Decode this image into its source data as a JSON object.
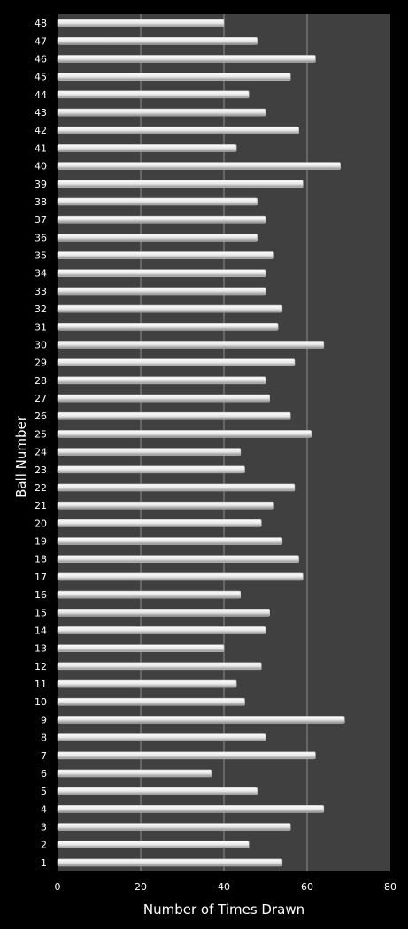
{
  "chart_data": {
    "type": "bar",
    "orientation": "horizontal",
    "title": "",
    "xlabel": "Number of Times Drawn",
    "ylabel": "Ball Number",
    "xlim": [
      0,
      80
    ],
    "xticks": [
      0,
      20,
      40,
      60,
      80
    ],
    "grid": "vertical",
    "legend": "none",
    "colors": {
      "background": "#000000",
      "plot_area": "#404040",
      "bar": "#e8e8e8",
      "grid": "#8c8c8c",
      "text": "#ffffff"
    },
    "categories": [
      "1",
      "2",
      "3",
      "4",
      "5",
      "6",
      "7",
      "8",
      "9",
      "10",
      "11",
      "12",
      "13",
      "14",
      "15",
      "16",
      "17",
      "18",
      "19",
      "20",
      "21",
      "22",
      "23",
      "24",
      "25",
      "26",
      "27",
      "28",
      "29",
      "30",
      "31",
      "32",
      "33",
      "34",
      "35",
      "36",
      "37",
      "38",
      "39",
      "40",
      "41",
      "42",
      "43",
      "44",
      "45",
      "46",
      "47",
      "48"
    ],
    "values": [
      54,
      46,
      56,
      64,
      48,
      37,
      62,
      50,
      69,
      45,
      43,
      49,
      40,
      50,
      51,
      44,
      59,
      58,
      54,
      49,
      52,
      57,
      45,
      44,
      61,
      56,
      51,
      50,
      57,
      64,
      53,
      54,
      50,
      50,
      52,
      48,
      50,
      48,
      59,
      68,
      43,
      58,
      50,
      46,
      56,
      62,
      48,
      40
    ]
  }
}
